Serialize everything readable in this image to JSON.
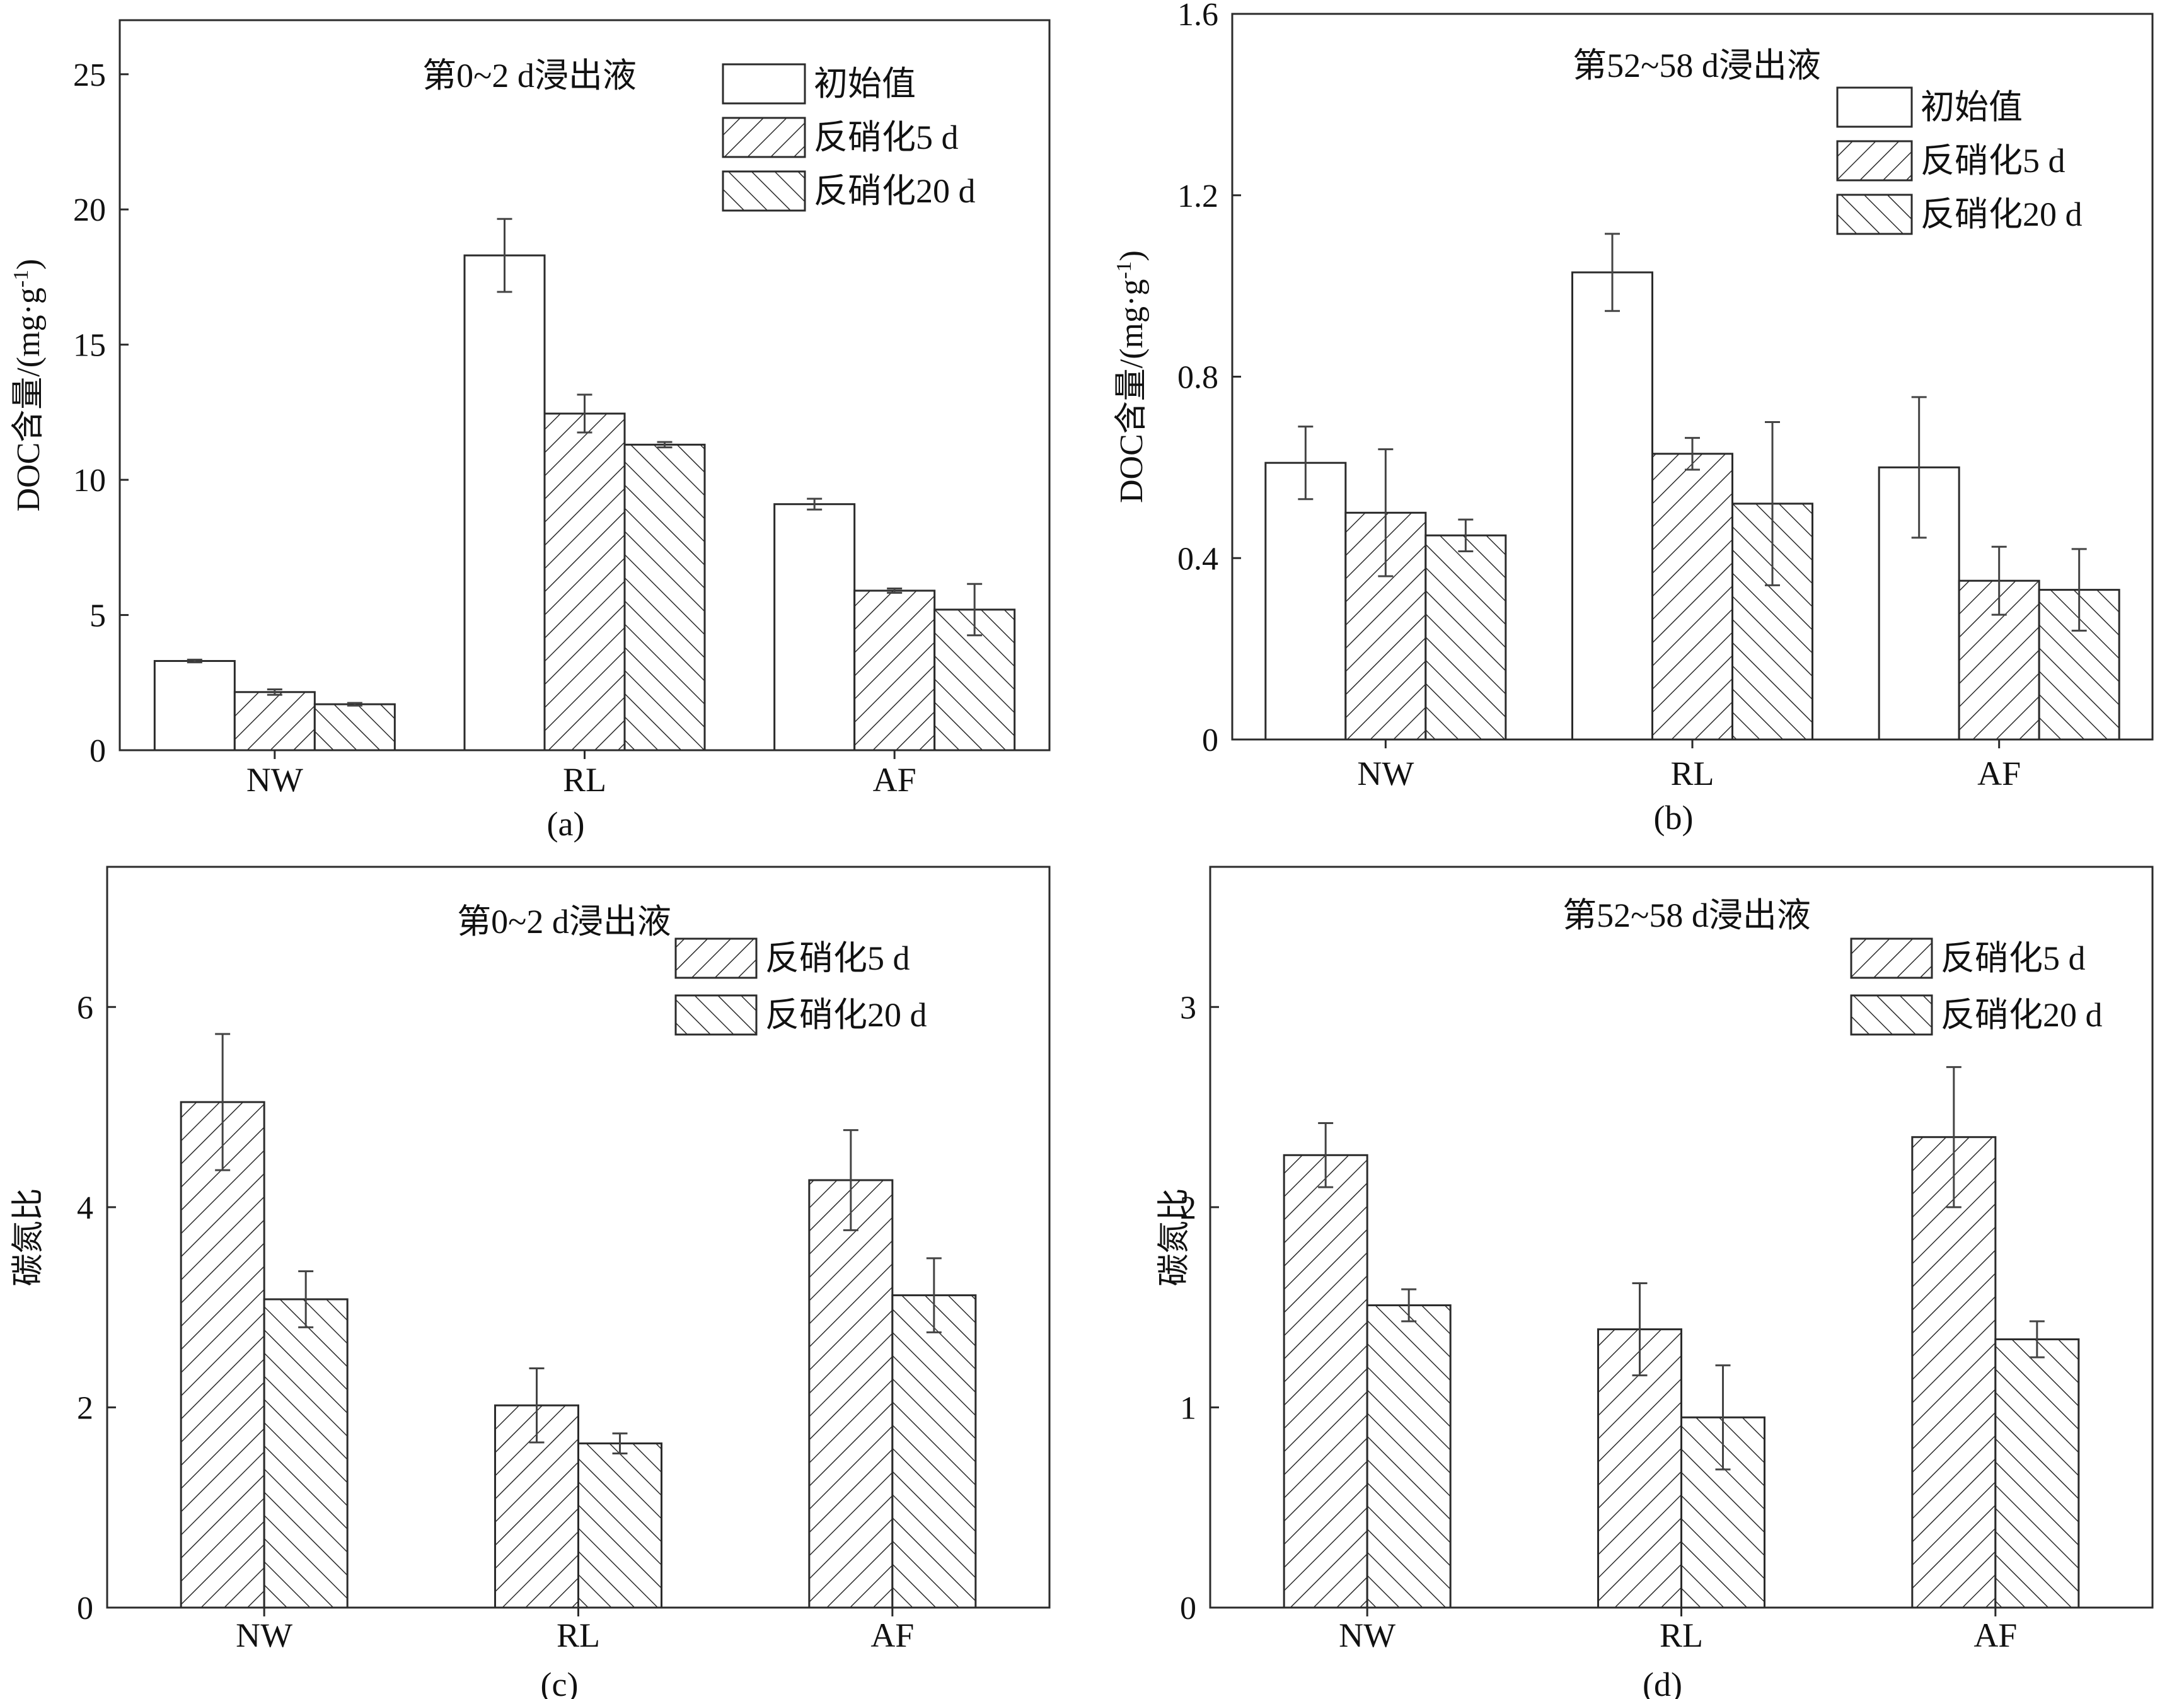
{
  "colors": {
    "ink": "#2b2b2b",
    "error": "#444444",
    "background": "#ffffff"
  },
  "chart_data": [
    {
      "id": "a",
      "type": "bar",
      "title": "第0~2 d浸出液",
      "sublabel": "(a)",
      "ylabel": "DOC含量/(mg·g",
      "ylabel_sup": "-1",
      "ylabel_tail": ")",
      "xlabel": "",
      "categories": [
        "NW",
        "RL",
        "AF"
      ],
      "ylim": [
        0,
        27
      ],
      "yticks": [
        0,
        5,
        10,
        15,
        20,
        25
      ],
      "legend": "top-right",
      "series": [
        {
          "name": "初始值",
          "pattern": "none",
          "values": [
            3.3,
            18.3,
            9.1
          ],
          "errors": [
            0.05,
            1.35,
            0.2
          ]
        },
        {
          "name": "反硝化5 d",
          "pattern": "fwd",
          "values": [
            2.15,
            12.45,
            5.9
          ],
          "errors": [
            0.1,
            0.7,
            0.08
          ]
        },
        {
          "name": "反硝化20 d",
          "pattern": "bwd",
          "values": [
            1.7,
            11.3,
            5.2
          ],
          "errors": [
            0.05,
            0.1,
            0.95
          ]
        }
      ]
    },
    {
      "id": "b",
      "type": "bar",
      "title": "第52~58 d浸出液",
      "sublabel": "(b)",
      "ylabel": "DOC含量/(mg·g",
      "ylabel_sup": "-1",
      "ylabel_tail": ")",
      "xlabel": "",
      "categories": [
        "NW",
        "RL",
        "AF"
      ],
      "ylim": [
        0,
        1.6
      ],
      "yticks": [
        0,
        0.4,
        0.8,
        1.2,
        1.6
      ],
      "legend": "top-right",
      "series": [
        {
          "name": "初始值",
          "pattern": "none",
          "values": [
            0.61,
            1.03,
            0.6
          ],
          "errors": [
            0.08,
            0.085,
            0.155
          ]
        },
        {
          "name": "反硝化5 d",
          "pattern": "fwd",
          "values": [
            0.5,
            0.63,
            0.35
          ],
          "errors": [
            0.14,
            0.035,
            0.075
          ]
        },
        {
          "name": "反硝化20 d",
          "pattern": "bwd",
          "values": [
            0.45,
            0.52,
            0.33
          ],
          "errors": [
            0.035,
            0.18,
            0.09
          ]
        }
      ]
    },
    {
      "id": "c",
      "type": "bar",
      "title": "第0~2 d浸出液",
      "sublabel": "(c)",
      "ylabel": "碳氮比",
      "ylabel_sup": "",
      "ylabel_tail": "",
      "xlabel": "",
      "categories": [
        "NW",
        "RL",
        "AF"
      ],
      "ylim": [
        0,
        7.4
      ],
      "yticks": [
        0,
        2,
        4,
        6
      ],
      "legend": "top-right",
      "series": [
        {
          "name": "反硝化5 d",
          "pattern": "fwd",
          "values": [
            5.05,
            2.02,
            4.27
          ],
          "errors": [
            0.68,
            0.37,
            0.5
          ]
        },
        {
          "name": "反硝化20 d",
          "pattern": "bwd",
          "values": [
            3.08,
            1.64,
            3.12
          ],
          "errors": [
            0.28,
            0.1,
            0.37
          ]
        }
      ]
    },
    {
      "id": "d",
      "type": "bar",
      "title": "第52~58 d浸出液",
      "sublabel": "(d)",
      "ylabel": "碳氮比",
      "ylabel_sup": "",
      "ylabel_tail": "",
      "xlabel": "",
      "categories": [
        "NW",
        "RL",
        "AF"
      ],
      "ylim": [
        0,
        3.7
      ],
      "yticks": [
        0,
        1,
        2,
        3
      ],
      "legend": "top-right",
      "series": [
        {
          "name": "反硝化5 d",
          "pattern": "fwd",
          "values": [
            2.26,
            1.39,
            2.35
          ],
          "errors": [
            0.16,
            0.23,
            0.35
          ]
        },
        {
          "name": "反硝化20 d",
          "pattern": "bwd",
          "values": [
            1.51,
            0.95,
            1.34
          ],
          "errors": [
            0.08,
            0.26,
            0.09
          ]
        }
      ]
    }
  ]
}
